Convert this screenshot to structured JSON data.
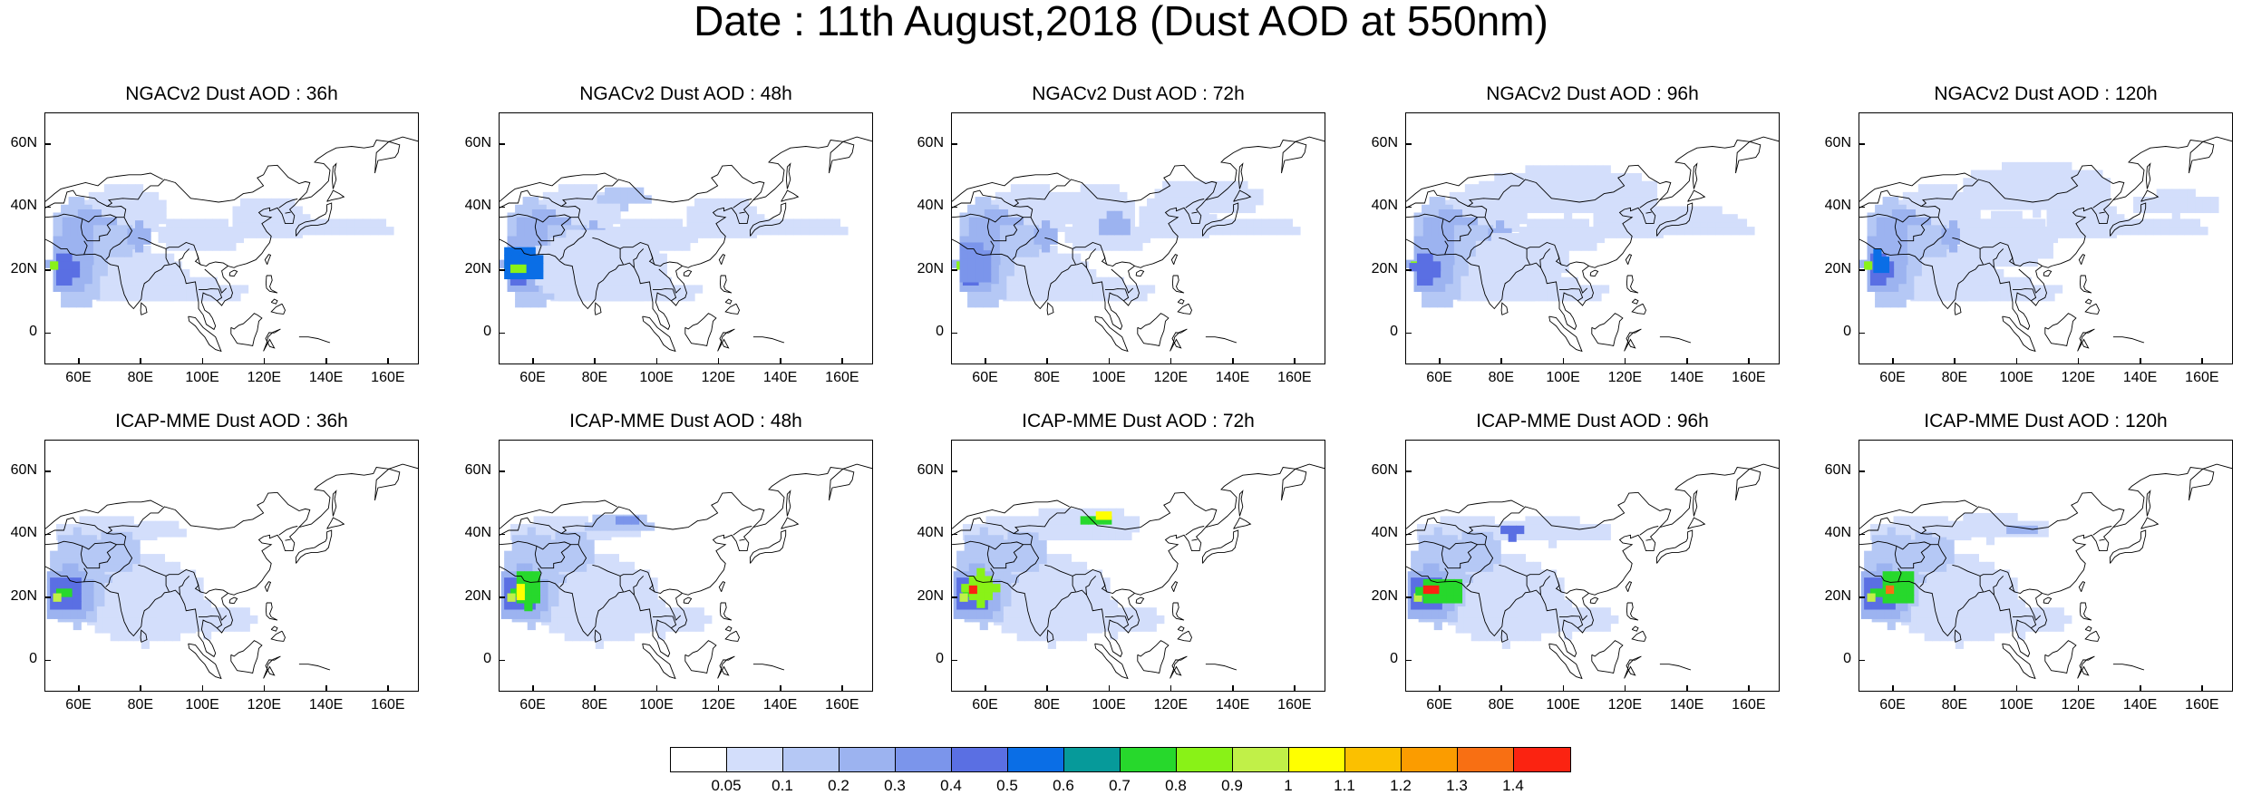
{
  "title": "Date : 11th August,2018 (Dust AOD at 550nm)",
  "x_tick_labels": [
    "60E",
    "80E",
    "100E",
    "120E",
    "140E",
    "160E"
  ],
  "y_tick_labels": [
    "60N",
    "40N",
    "20N",
    "0"
  ],
  "panels": [
    {
      "title": "NGACv2 Dust AOD : 36h",
      "row": 0,
      "col": 0,
      "model": "NGACv2",
      "lead": 36
    },
    {
      "title": "NGACv2 Dust AOD : 48h",
      "row": 0,
      "col": 1,
      "model": "NGACv2",
      "lead": 48
    },
    {
      "title": "NGACv2 Dust AOD : 72h",
      "row": 0,
      "col": 2,
      "model": "NGACv2",
      "lead": 72
    },
    {
      "title": "NGACv2 Dust AOD : 96h",
      "row": 0,
      "col": 3,
      "model": "NGACv2",
      "lead": 96
    },
    {
      "title": "NGACv2 Dust AOD : 120h",
      "row": 0,
      "col": 4,
      "model": "NGACv2",
      "lead": 120
    },
    {
      "title": "ICAP-MME Dust AOD : 36h",
      "row": 1,
      "col": 0,
      "model": "ICAP-MME",
      "lead": 36
    },
    {
      "title": "ICAP-MME Dust AOD : 48h",
      "row": 1,
      "col": 1,
      "model": "ICAP-MME",
      "lead": 48
    },
    {
      "title": "ICAP-MME Dust AOD : 72h",
      "row": 1,
      "col": 2,
      "model": "ICAP-MME",
      "lead": 72
    },
    {
      "title": "ICAP-MME Dust AOD : 96h",
      "row": 1,
      "col": 3,
      "model": "ICAP-MME",
      "lead": 96
    },
    {
      "title": "ICAP-MME Dust AOD : 120h",
      "row": 1,
      "col": 4,
      "model": "ICAP-MME",
      "lead": 120
    }
  ],
  "colorbar": {
    "labels": [
      "0.05",
      "0.1",
      "0.2",
      "0.3",
      "0.4",
      "0.5",
      "0.6",
      "0.7",
      "0.8",
      "0.9",
      "1",
      "1.1",
      "1.2",
      "1.3",
      "1.4"
    ],
    "colors": [
      "#ffffff",
      "#d3defb",
      "#b5c8f5",
      "#9cb3f0",
      "#7b95eb",
      "#5a6fe3",
      "#0a6ee6",
      "#069a9a",
      "#27d82c",
      "#89f217",
      "#c1f048",
      "#ffff00",
      "#fbc000",
      "#fb9c00",
      "#f86f13",
      "#fb2311"
    ]
  }
}
